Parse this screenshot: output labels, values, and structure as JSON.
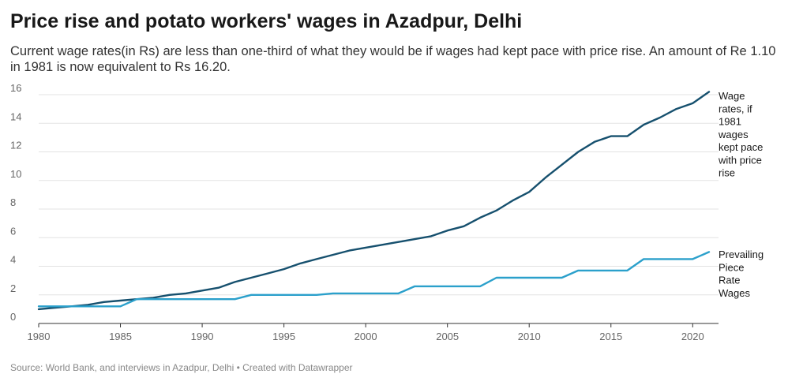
{
  "header": {
    "title": "Price rise and potato workers' wages in Azadpur, Delhi",
    "subtitle": "Current wage rates(in Rs) are less than one-third of what they would be if wages had kept pace with price rise. An amount of Re 1.10 in 1981 is now equivalent to Rs 16.20."
  },
  "footer": {
    "source": "Source: World Bank, and interviews in Azadpur, Delhi • Created with Datawrapper"
  },
  "chart_data": {
    "type": "line",
    "title": "Price rise and potato workers' wages in Azadpur, Delhi",
    "xlabel": "",
    "ylabel": "",
    "xlim": [
      1980,
      2021
    ],
    "ylim": [
      0,
      16
    ],
    "grid": true,
    "x_ticks": [
      1980,
      1985,
      1990,
      1995,
      2000,
      2005,
      2010,
      2015,
      2020
    ],
    "y_ticks": [
      0,
      2,
      4,
      6,
      8,
      10,
      12,
      14,
      16
    ],
    "x": [
      1980,
      1981,
      1982,
      1983,
      1984,
      1985,
      1986,
      1987,
      1988,
      1989,
      1990,
      1991,
      1992,
      1993,
      1994,
      1995,
      1996,
      1997,
      1998,
      1999,
      2000,
      2001,
      2002,
      2003,
      2004,
      2005,
      2006,
      2007,
      2008,
      2009,
      2010,
      2011,
      2012,
      2013,
      2014,
      2015,
      2016,
      2017,
      2018,
      2019,
      2020,
      2021
    ],
    "series": [
      {
        "name": "Wage rates, if 1981 wages kept pace with price rise",
        "label_lines": [
          "Wage",
          "rates, if",
          "1981",
          "wages",
          "kept pace",
          "with price",
          "rise"
        ],
        "color": "#16506e",
        "values": [
          1.0,
          1.1,
          1.2,
          1.3,
          1.5,
          1.6,
          1.7,
          1.8,
          2.0,
          2.1,
          2.3,
          2.5,
          2.9,
          3.2,
          3.5,
          3.8,
          4.2,
          4.5,
          4.8,
          5.1,
          5.3,
          5.5,
          5.7,
          5.9,
          6.1,
          6.5,
          6.8,
          7.4,
          7.9,
          8.6,
          9.2,
          10.2,
          11.1,
          12.0,
          12.7,
          13.1,
          13.1,
          13.9,
          14.4,
          15.0,
          15.4,
          16.2
        ]
      },
      {
        "name": "Prevailing Piece Rate Wages",
        "label_lines": [
          "Prevailing",
          "Piece",
          "Rate",
          "Wages"
        ],
        "color": "#2ba0cb",
        "values": [
          1.2,
          1.2,
          1.2,
          1.2,
          1.2,
          1.2,
          1.7,
          1.7,
          1.7,
          1.7,
          1.7,
          1.7,
          1.7,
          2.0,
          2.0,
          2.0,
          2.0,
          2.0,
          2.1,
          2.1,
          2.1,
          2.1,
          2.1,
          2.6,
          2.6,
          2.6,
          2.6,
          2.6,
          3.2,
          3.2,
          3.2,
          3.2,
          3.2,
          3.7,
          3.7,
          3.7,
          3.7,
          4.5,
          4.5,
          4.5,
          4.5,
          5.0
        ]
      }
    ]
  }
}
